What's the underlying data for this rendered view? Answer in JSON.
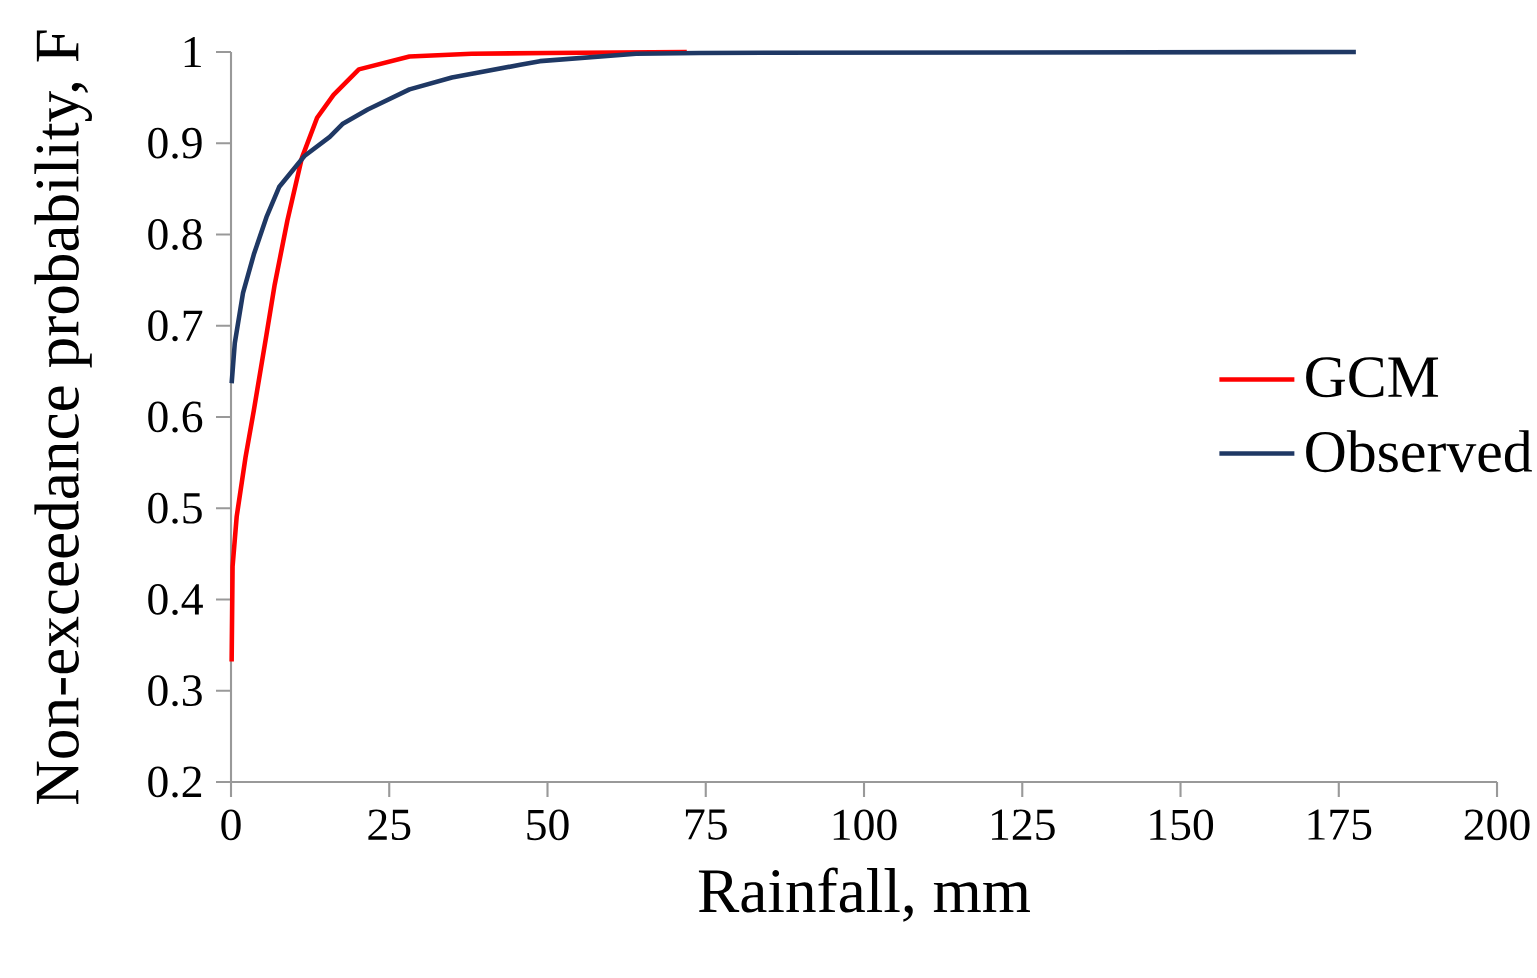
{
  "chart_data": {
    "type": "line",
    "xlabel": "Rainfall,  mm",
    "ylabel": "Non-exceedance  probability,  F",
    "xlim": [
      0,
      200
    ],
    "xticks": [
      0,
      25,
      50,
      75,
      100,
      125,
      150,
      175,
      200
    ],
    "ylim": [
      0.2,
      1
    ],
    "yticks": [
      0.2,
      0.3,
      0.4,
      0.5,
      0.6,
      0.7,
      0.8,
      0.9,
      1
    ],
    "grid": false,
    "legend": "right",
    "marker": "none",
    "line_style": "solid",
    "series": [
      {
        "name": "GCM",
        "color": "#ff0000",
        "x": [
          0.1,
          0.25,
          0.9,
          2.3,
          3.6,
          5.6,
          6.9,
          8.9,
          11.2,
          13.6,
          16.2,
          20.2,
          28.2,
          38,
          50,
          72
        ],
        "values": [
          0.332,
          0.436,
          0.491,
          0.556,
          0.607,
          0.69,
          0.745,
          0.815,
          0.884,
          0.928,
          0.953,
          0.981,
          0.995,
          0.998,
          0.999,
          1.0
        ]
      },
      {
        "name": "Observed",
        "color": "#1f3864",
        "x": [
          0.1,
          0.6,
          1.9,
          3.6,
          5.6,
          7.6,
          11.6,
          15.6,
          17.6,
          21.6,
          28.2,
          34.9,
          38.7,
          45.7,
          48.8,
          64,
          74,
          177.7
        ],
        "values": [
          0.637,
          0.681,
          0.736,
          0.778,
          0.819,
          0.852,
          0.886,
          0.907,
          0.921,
          0.937,
          0.959,
          0.972,
          0.977,
          0.986,
          0.99,
          0.998,
          0.999,
          1.0
        ]
      }
    ]
  }
}
